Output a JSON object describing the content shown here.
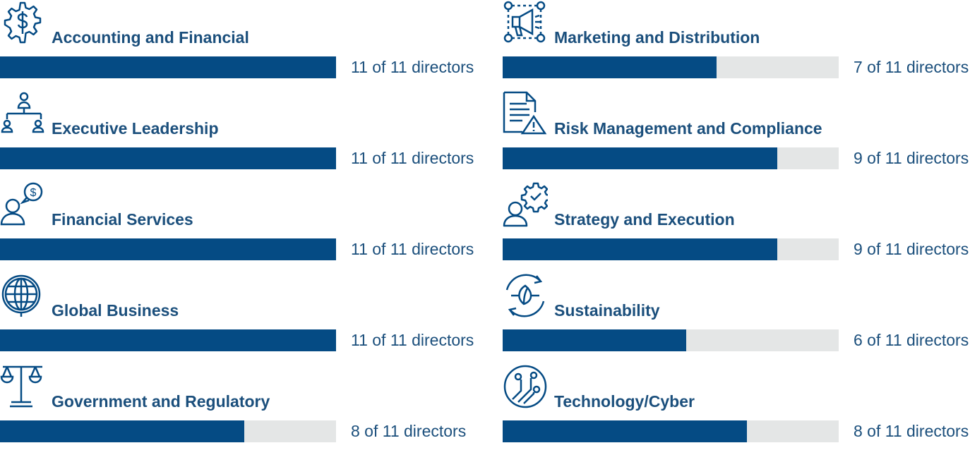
{
  "chart_data": {
    "type": "bar",
    "colors": {
      "fill": "#054b84",
      "track": "#e4e6e6",
      "text": "#1b4f7c"
    },
    "total": 11,
    "columns": [
      [
        {
          "label": "Accounting and Financial",
          "value": 11,
          "count_text": "11 of 11 directors",
          "icon": "dollar-gear-icon"
        },
        {
          "label": "Executive Leadership",
          "value": 11,
          "count_text": "11 of 11 directors",
          "icon": "org-chart-icon"
        },
        {
          "label": "Financial Services",
          "value": 11,
          "count_text": "11 of 11 directors",
          "icon": "person-dollar-bubble-icon"
        },
        {
          "label": "Global Business",
          "value": 11,
          "count_text": "11 of 11 directors",
          "icon": "globe-icon"
        },
        {
          "label": "Government and Regulatory",
          "value": 8,
          "count_text": "8 of 11 directors",
          "icon": "scales-icon"
        }
      ],
      [
        {
          "label": "Marketing and Distribution",
          "value": 7,
          "count_text": "7 of 11 directors",
          "icon": "megaphone-icon"
        },
        {
          "label": "Risk Management and Compliance",
          "value": 9,
          "count_text": "9 of 11 directors",
          "icon": "document-warning-icon"
        },
        {
          "label": "Strategy and Execution",
          "value": 9,
          "count_text": "9 of 11 directors",
          "icon": "person-gear-check-icon"
        },
        {
          "label": "Sustainability",
          "value": 6,
          "count_text": "6 of 11 directors",
          "icon": "leaf-cycle-icon"
        },
        {
          "label": "Technology/Cyber",
          "value": 8,
          "count_text": "8 of 11 directors",
          "icon": "circuit-icon"
        }
      ]
    ]
  }
}
